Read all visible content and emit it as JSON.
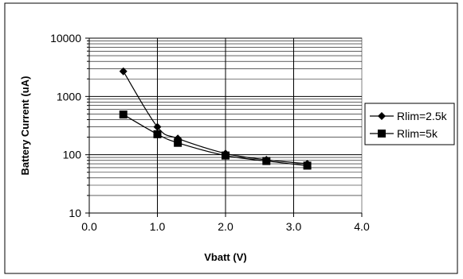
{
  "chart_data": {
    "type": "line",
    "title": "",
    "xlabel": "Vbatt (V)",
    "ylabel": "Battery Current (uA)",
    "xlim": [
      0.0,
      4.0
    ],
    "ylim": [
      10,
      10000
    ],
    "yscale": "log",
    "grid": true,
    "x_tick_labels": [
      "0.0",
      "1.0",
      "2.0",
      "3.0",
      "4.0"
    ],
    "y_tick_labels": [
      "10",
      "100",
      "1000",
      "10000"
    ],
    "legend_position": "right",
    "series": [
      {
        "name": "Rlim=2.5k",
        "marker": "diamond",
        "color": "#000000",
        "x": [
          0.5,
          1.0,
          1.3,
          2.0,
          2.6,
          3.2
        ],
        "y": [
          2700,
          300,
          190,
          105,
          82,
          70
        ]
      },
      {
        "name": "Rlim=5k",
        "marker": "square",
        "color": "#000000",
        "x": [
          0.5,
          1.0,
          1.3,
          2.0,
          2.6,
          3.2
        ],
        "y": [
          490,
          225,
          160,
          97,
          78,
          65
        ]
      }
    ]
  }
}
